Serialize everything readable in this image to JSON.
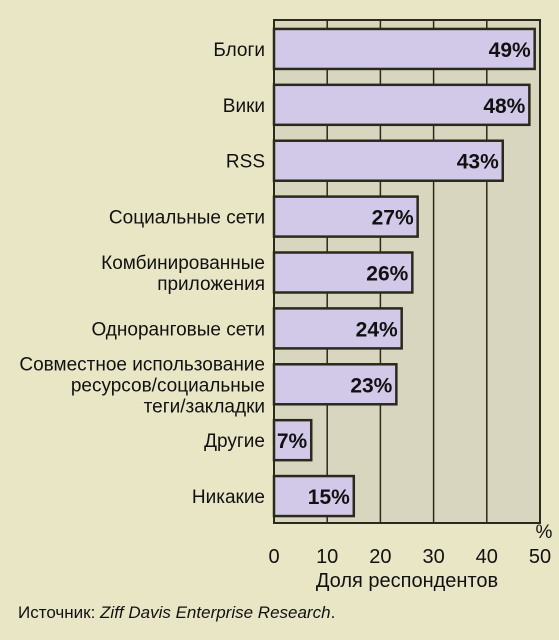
{
  "chart_data": {
    "type": "bar",
    "orientation": "horizontal",
    "categories": [
      [
        "Блоги"
      ],
      [
        "Вики"
      ],
      [
        "RSS"
      ],
      [
        "Социальные сети"
      ],
      [
        "Комбинированные",
        "приложения"
      ],
      [
        "Одноранговые сети"
      ],
      [
        "Совместное использование",
        "ресурсов/социальные",
        "теги/закладки"
      ],
      [
        "Другие"
      ],
      [
        "Никакие"
      ]
    ],
    "values": [
      49,
      48,
      43,
      27,
      26,
      24,
      23,
      7,
      15
    ],
    "value_labels": [
      "49%",
      "48%",
      "43%",
      "27%",
      "26%",
      "24%",
      "23%",
      "7%",
      "15%"
    ],
    "xlabel": "Доля респондентов",
    "unit": "%",
    "xticks": [
      "0",
      "10",
      "20",
      "30",
      "40",
      "50"
    ],
    "xlim": [
      0,
      50
    ],
    "grid": true,
    "colors": {
      "bar_fill": "#d2c9e9",
      "bar_stroke": "#2a2a1a",
      "plot_bg": "#d9d6c0",
      "page_bg": "#e9e6c6"
    }
  },
  "source": {
    "prefix": "Источник: ",
    "name": "Ziff Davis Enterprise Research",
    "suffix": "."
  }
}
